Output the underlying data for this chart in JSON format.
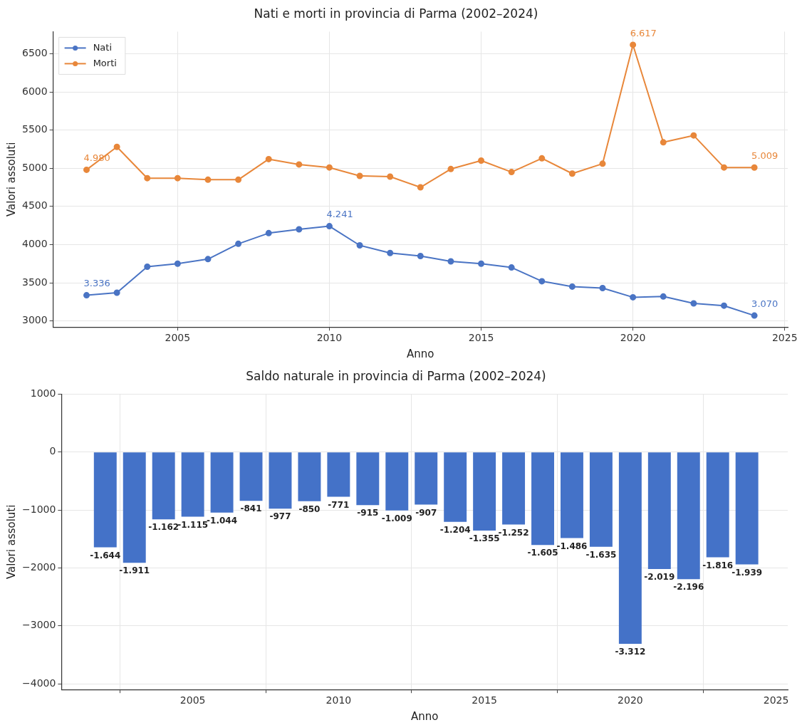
{
  "chart_data": [
    {
      "type": "line",
      "title": "Nati e morti in provincia di Parma (2002–2024)",
      "xlabel": "Anno",
      "ylabel": "Valori assoluti",
      "x": [
        2002,
        2003,
        2004,
        2005,
        2006,
        2007,
        2008,
        2009,
        2010,
        2011,
        2012,
        2013,
        2014,
        2015,
        2016,
        2017,
        2018,
        2019,
        2020,
        2021,
        2022,
        2023,
        2024
      ],
      "series": [
        {
          "name": "Nati",
          "color": "#4a74c4",
          "values": [
            3336,
            3370,
            3710,
            3750,
            3810,
            4010,
            4150,
            4200,
            4241,
            3990,
            3890,
            3850,
            3780,
            3750,
            3700,
            3520,
            3450,
            3430,
            3310,
            3320,
            3230,
            3200,
            3070
          ],
          "value_labels": [
            "3.336",
            null,
            null,
            null,
            null,
            null,
            null,
            null,
            "4.241",
            null,
            null,
            null,
            null,
            null,
            null,
            null,
            null,
            null,
            null,
            null,
            null,
            null,
            "3.070"
          ]
        },
        {
          "name": "Morti",
          "color": "#e8873a",
          "values": [
            4980,
            5280,
            4870,
            4870,
            4850,
            4850,
            5120,
            5050,
            5010,
            4900,
            4890,
            4750,
            4990,
            5100,
            4950,
            5130,
            4930,
            5060,
            6617,
            5340,
            5430,
            5010,
            5009
          ],
          "value_labels": [
            "4.980",
            null,
            null,
            null,
            null,
            null,
            null,
            null,
            null,
            null,
            null,
            null,
            null,
            null,
            null,
            null,
            null,
            null,
            "6.617",
            null,
            null,
            null,
            "5.009"
          ]
        }
      ],
      "xlim": [
        2000.9,
        2025.1
      ],
      "xticks": [
        2005,
        2010,
        2015,
        2020,
        2025
      ],
      "ylim": [
        2920,
        6790
      ],
      "yticks": [
        3000,
        3500,
        4000,
        4500,
        5000,
        5500,
        6000,
        6500
      ],
      "grid": true,
      "legend": "top left",
      "marker": "circle",
      "line_style": "solid"
    },
    {
      "type": "bar",
      "title": "Saldo naturale in provincia di Parma (2002–2024)",
      "xlabel": "Anno",
      "ylabel": "Valori assoluti",
      "x": [
        2002,
        2003,
        2004,
        2005,
        2006,
        2007,
        2008,
        2009,
        2010,
        2011,
        2012,
        2013,
        2014,
        2015,
        2016,
        2017,
        2018,
        2019,
        2020,
        2021,
        2022,
        2023,
        2024
      ],
      "values": [
        -1644,
        -1911,
        -1162,
        -1115,
        -1044,
        -841,
        -977,
        -850,
        -771,
        -915,
        -1009,
        -907,
        -1204,
        -1355,
        -1252,
        -1605,
        -1486,
        -1635,
        -3312,
        -2019,
        -2196,
        -1816,
        -1939
      ],
      "value_labels": [
        "-1.644",
        "-1.911",
        "-1.162",
        "-1.115",
        "-1.044",
        "-841",
        "-977",
        "-850",
        "-771",
        "-915",
        "-1.009",
        "-907",
        "-1.204",
        "-1.355",
        "-1.252",
        "-1.605",
        "-1.486",
        "-1.635",
        "-3.312",
        "-2.019",
        "-2.196",
        "-1.816",
        "-1.939"
      ],
      "color": "#4472c8",
      "xlim": [
        2000.5,
        2025.4
      ],
      "xticks": [
        2005,
        2010,
        2015,
        2020,
        2025
      ],
      "ylim": [
        -4100,
        1000
      ],
      "yticks": [
        {
          "value": -4000,
          "label": "−4000"
        },
        {
          "value": -3000,
          "label": "−3000"
        },
        {
          "value": -2000,
          "label": "−2000"
        },
        {
          "value": -1000,
          "label": "−1000"
        },
        0,
        1000
      ],
      "grid": true
    }
  ]
}
